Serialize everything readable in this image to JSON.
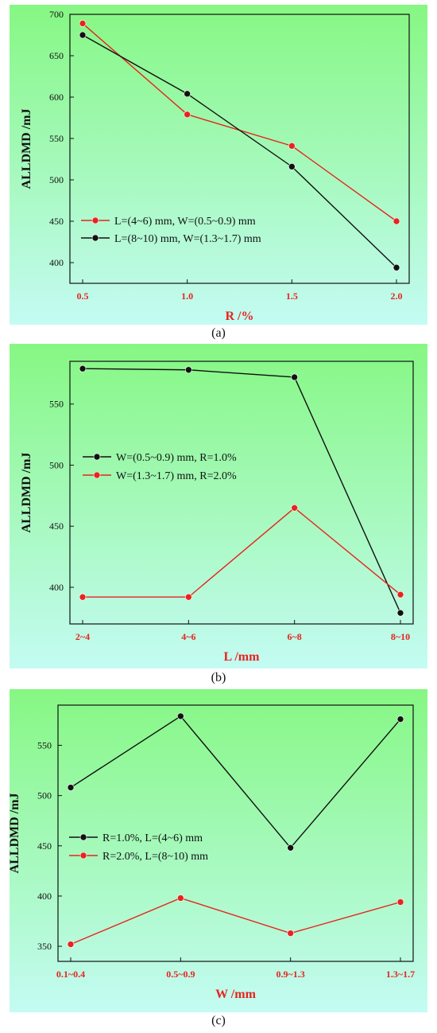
{
  "chart_data": [
    {
      "type": "line",
      "caption": "(a)",
      "xlabel": "R /%",
      "ylabel": "ALLDMD /mJ",
      "x_ticks": [
        "0.5",
        "1.0",
        "1.5",
        "2.0"
      ],
      "ylim": [
        375,
        700
      ],
      "y_ticks": [
        400,
        450,
        500,
        550,
        600,
        650,
        700
      ],
      "legend_position": "bottom-left",
      "series": [
        {
          "name": "L=(4~6) mm, W=(0.5~0.9) mm",
          "color": "#e8231e",
          "values": [
            689,
            579,
            541,
            450
          ]
        },
        {
          "name": "L=(8~10) mm, W=(1.3~1.7) mm",
          "color": "#111111",
          "values": [
            675,
            604,
            516,
            394
          ]
        }
      ]
    },
    {
      "type": "line",
      "caption": "(b)",
      "xlabel": "L /mm",
      "ylabel": "ALLDMD /mJ",
      "x_ticks": [
        "2~4",
        "4~6",
        "6~8",
        "8~10"
      ],
      "ylim": [
        370,
        585
      ],
      "y_ticks": [
        400,
        450,
        500,
        550
      ],
      "legend_position": "middle-left",
      "series": [
        {
          "name": "W=(0.5~0.9) mm, R=1.0%",
          "color": "#111111",
          "values": [
            579,
            578,
            572,
            379
          ]
        },
        {
          "name": "W=(1.3~1.7) mm, R=2.0%",
          "color": "#e8231e",
          "values": [
            392,
            392,
            465,
            394
          ]
        }
      ]
    },
    {
      "type": "line",
      "caption": "(c)",
      "xlabel": "W /mm",
      "ylabel": "ALLDMD /mJ",
      "x_ticks": [
        "0.1~0.4",
        "0.5~0.9",
        "0.9~1.3",
        "1.3~1.7"
      ],
      "ylim": [
        335,
        590
      ],
      "y_ticks": [
        350,
        400,
        450,
        500,
        550
      ],
      "legend_position": "middle-left",
      "series": [
        {
          "name": "R=1.0%, L=(4~6) mm",
          "color": "#111111",
          "values": [
            508,
            579,
            448,
            576
          ]
        },
        {
          "name": "R=2.0%, L=(8~10) mm",
          "color": "#e8231e",
          "values": [
            352,
            398,
            363,
            394
          ]
        }
      ]
    }
  ]
}
